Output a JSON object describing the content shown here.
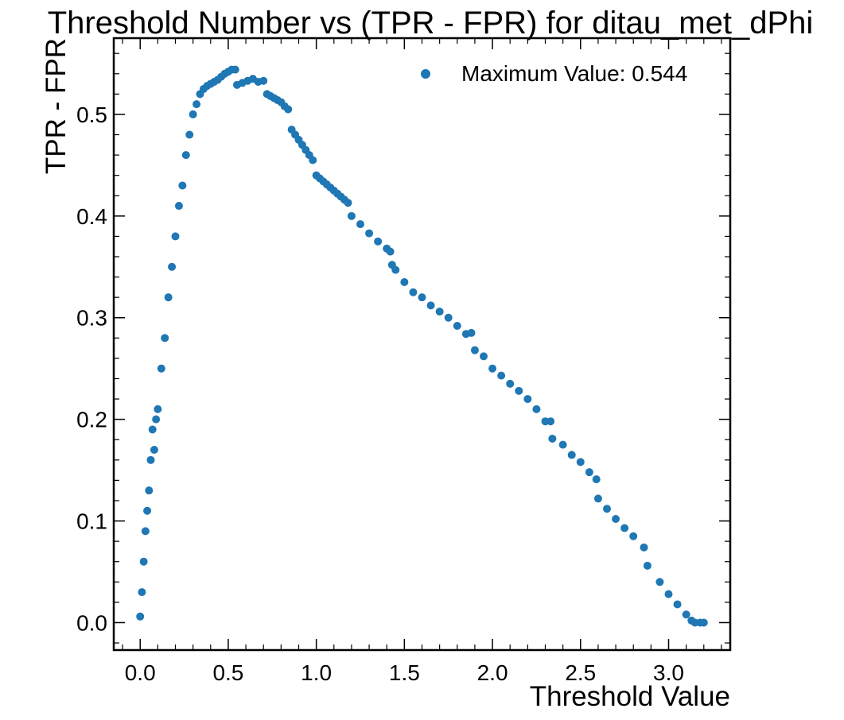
{
  "chart_data": {
    "type": "scatter",
    "title": "Threshold Number vs (TPR - FPR) for ditau_met_dPhi",
    "xlabel": "Threshold Value",
    "ylabel": "TPR - FPR",
    "xlim": [
      -0.15,
      3.35
    ],
    "ylim": [
      -0.027,
      0.575
    ],
    "xticks": [
      0.0,
      0.5,
      1.0,
      1.5,
      2.0,
      2.5,
      3.0
    ],
    "xtick_labels": [
      "0.0",
      "0.5",
      "1.0",
      "1.5",
      "2.0",
      "2.5",
      "3.0"
    ],
    "yticks": [
      0.0,
      0.1,
      0.2,
      0.3,
      0.4,
      0.5
    ],
    "ytick_labels": [
      "0.0",
      "0.1",
      "0.2",
      "0.3",
      "0.4",
      "0.5"
    ],
    "color": "#1f77b4",
    "legend": {
      "label": "Maximum Value: 0.544",
      "position": "top-right"
    },
    "series": [
      {
        "name": "Maximum Value: 0.544",
        "x": [
          0.0,
          0.01,
          0.02,
          0.03,
          0.04,
          0.05,
          0.06,
          0.07,
          0.08,
          0.09,
          0.1,
          0.12,
          0.14,
          0.16,
          0.18,
          0.2,
          0.22,
          0.24,
          0.26,
          0.28,
          0.3,
          0.32,
          0.34,
          0.36,
          0.38,
          0.4,
          0.42,
          0.44,
          0.46,
          0.48,
          0.5,
          0.52,
          0.54,
          0.55,
          0.58,
          0.61,
          0.64,
          0.67,
          0.7,
          0.72,
          0.74,
          0.76,
          0.78,
          0.8,
          0.82,
          0.84,
          0.86,
          0.88,
          0.9,
          0.92,
          0.94,
          0.96,
          0.98,
          1.0,
          1.02,
          1.04,
          1.06,
          1.08,
          1.1,
          1.12,
          1.14,
          1.16,
          1.18,
          1.2,
          1.25,
          1.3,
          1.35,
          1.4,
          1.42,
          1.43,
          1.45,
          1.5,
          1.55,
          1.6,
          1.65,
          1.7,
          1.75,
          1.8,
          1.85,
          1.88,
          1.9,
          1.95,
          2.0,
          2.05,
          2.1,
          2.15,
          2.2,
          2.25,
          2.3,
          2.33,
          2.34,
          2.4,
          2.45,
          2.5,
          2.55,
          2.59,
          2.6,
          2.65,
          2.7,
          2.75,
          2.8,
          2.86,
          2.88,
          2.95,
          3.0,
          3.05,
          3.1,
          3.13,
          3.15,
          3.18,
          3.2
        ],
        "y": [
          0.006,
          0.03,
          0.06,
          0.09,
          0.11,
          0.13,
          0.16,
          0.19,
          0.17,
          0.2,
          0.21,
          0.25,
          0.28,
          0.32,
          0.35,
          0.38,
          0.41,
          0.43,
          0.46,
          0.48,
          0.5,
          0.51,
          0.52,
          0.525,
          0.528,
          0.53,
          0.532,
          0.534,
          0.537,
          0.54,
          0.542,
          0.544,
          0.544,
          0.529,
          0.531,
          0.533,
          0.535,
          0.532,
          0.533,
          0.52,
          0.518,
          0.516,
          0.514,
          0.512,
          0.508,
          0.505,
          0.485,
          0.48,
          0.475,
          0.47,
          0.465,
          0.46,
          0.455,
          0.44,
          0.437,
          0.434,
          0.431,
          0.428,
          0.425,
          0.422,
          0.419,
          0.416,
          0.413,
          0.4,
          0.392,
          0.383,
          0.375,
          0.368,
          0.365,
          0.352,
          0.347,
          0.335,
          0.325,
          0.32,
          0.312,
          0.306,
          0.3,
          0.292,
          0.284,
          0.285,
          0.268,
          0.262,
          0.25,
          0.243,
          0.235,
          0.228,
          0.22,
          0.21,
          0.198,
          0.198,
          0.181,
          0.175,
          0.165,
          0.158,
          0.148,
          0.141,
          0.122,
          0.112,
          0.102,
          0.093,
          0.085,
          0.074,
          0.056,
          0.04,
          0.028,
          0.018,
          0.008,
          0.002,
          0.0,
          0.0,
          0.0
        ]
      }
    ]
  }
}
